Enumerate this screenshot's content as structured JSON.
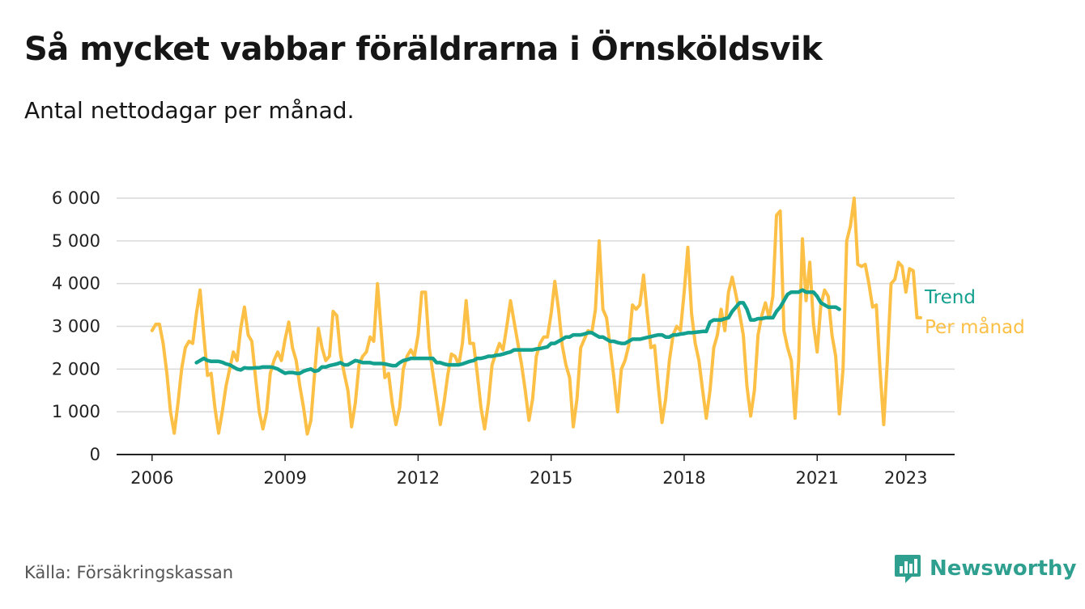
{
  "title": "Så mycket vabbar föräldrarna i Örnsköldsvik",
  "subtitle": "Antal nettodagar per månad.",
  "source": "Källa: Försäkringskassan",
  "brand": "Newsworthy",
  "colors": {
    "per_month": "#FDC046",
    "trend": "#13A08E",
    "grid": "#d9d9d9",
    "axis": "#222222",
    "brand": "#2f9f8f"
  },
  "chart_data": {
    "type": "line",
    "title": "Så mycket vabbar föräldrarna i Örnsköldsvik",
    "xlabel": "",
    "ylabel": "",
    "xlim": [
      2005.2,
      2024.1
    ],
    "ylim": [
      0,
      6000
    ],
    "grid": true,
    "y_ticks": [
      0,
      1000,
      2000,
      3000,
      4000,
      5000,
      6000
    ],
    "y_tick_labels": [
      "0",
      "1 000",
      "2 000",
      "3 000",
      "4 000",
      "5 000",
      "6 000"
    ],
    "x_ticks": [
      2006,
      2009,
      2012,
      2015,
      2018,
      2021,
      2023
    ],
    "x_tick_labels": [
      "2006",
      "2009",
      "2012",
      "2015",
      "2018",
      "2021",
      "2023"
    ],
    "series": [
      {
        "name": "Per månad",
        "color": "#FDC046",
        "x_start": "2006-01",
        "values": [
          2900,
          3050,
          3050,
          2600,
          1900,
          1000,
          500,
          1200,
          2000,
          2500,
          2650,
          2600,
          3300,
          3850,
          2800,
          1850,
          1900,
          1100,
          500,
          1000,
          1600,
          2000,
          2400,
          2200,
          2950,
          3450,
          2800,
          2650,
          1800,
          1000,
          600,
          1000,
          1900,
          2200,
          2400,
          2200,
          2700,
          3100,
          2500,
          2200,
          1600,
          1100,
          480,
          800,
          1900,
          2950,
          2500,
          2200,
          2300,
          3350,
          3250,
          2350,
          1900,
          1500,
          650,
          1200,
          2100,
          2300,
          2400,
          2750,
          2650,
          4000,
          2900,
          1800,
          1900,
          1200,
          700,
          1100,
          2000,
          2300,
          2450,
          2300,
          2800,
          3800,
          3800,
          2500,
          1900,
          1300,
          700,
          1200,
          1850,
          2350,
          2300,
          2100,
          2600,
          3600,
          2600,
          2600,
          1900,
          1100,
          600,
          1200,
          2100,
          2350,
          2600,
          2450,
          3000,
          3600,
          3100,
          2600,
          2100,
          1500,
          800,
          1300,
          2300,
          2600,
          2750,
          2750,
          3300,
          4050,
          3400,
          2550,
          2100,
          1800,
          650,
          1300,
          2500,
          2700,
          2900,
          2850,
          3400,
          5000,
          3400,
          3200,
          2500,
          1800,
          1000,
          2000,
          2200,
          2550,
          3500,
          3400,
          3500,
          4200,
          3300,
          2500,
          2550,
          1600,
          750,
          1300,
          2200,
          2800,
          3000,
          2900,
          3800,
          4850,
          3300,
          2600,
          2200,
          1500,
          850,
          1500,
          2500,
          2800,
          3400,
          2900,
          3800,
          4150,
          3750,
          3300,
          2800,
          1600,
          900,
          1500,
          2800,
          3250,
          3550,
          3200,
          3700,
          5600,
          5700,
          2900,
          2500,
          2200,
          850,
          2200,
          5050,
          3600,
          4500,
          3050,
          2400,
          3500,
          3850,
          3700,
          2800,
          2300,
          950,
          2000,
          5000,
          5350,
          6000,
          4450,
          4400,
          4450,
          4000,
          3450,
          3500,
          2000,
          700,
          2200,
          4000,
          4100,
          4500,
          4400,
          3800,
          4350,
          4300,
          3200,
          3200
        ]
      },
      {
        "name": "Trend",
        "color": "#13A08E",
        "x_start": "2007-01",
        "values": [
          2150,
          2200,
          2250,
          2200,
          2180,
          2180,
          2180,
          2160,
          2120,
          2100,
          2050,
          2000,
          1980,
          2030,
          2020,
          2020,
          2030,
          2030,
          2050,
          2050,
          2050,
          2030,
          2000,
          1950,
          1900,
          1920,
          1920,
          1900,
          1900,
          1950,
          1980,
          2000,
          1950,
          1970,
          2050,
          2050,
          2080,
          2100,
          2120,
          2150,
          2100,
          2100,
          2150,
          2200,
          2180,
          2150,
          2150,
          2150,
          2130,
          2130,
          2130,
          2120,
          2100,
          2080,
          2080,
          2150,
          2200,
          2220,
          2250,
          2250,
          2250,
          2250,
          2250,
          2250,
          2250,
          2150,
          2150,
          2120,
          2100,
          2100,
          2100,
          2100,
          2120,
          2150,
          2180,
          2200,
          2250,
          2250,
          2270,
          2300,
          2300,
          2320,
          2330,
          2350,
          2380,
          2400,
          2450,
          2450,
          2450,
          2450,
          2450,
          2450,
          2470,
          2480,
          2500,
          2520,
          2600,
          2600,
          2650,
          2700,
          2750,
          2750,
          2800,
          2800,
          2800,
          2820,
          2850,
          2850,
          2800,
          2750,
          2750,
          2700,
          2650,
          2650,
          2620,
          2600,
          2600,
          2650,
          2700,
          2700,
          2700,
          2720,
          2740,
          2760,
          2780,
          2800,
          2800,
          2750,
          2750,
          2800,
          2800,
          2820,
          2830,
          2850,
          2850,
          2860,
          2870,
          2880,
          2880,
          3100,
          3150,
          3150,
          3150,
          3180,
          3200,
          3350,
          3450,
          3550,
          3550,
          3400,
          3150,
          3150,
          3180,
          3180,
          3200,
          3200,
          3200,
          3350,
          3450,
          3600,
          3750,
          3800,
          3800,
          3800,
          3850,
          3800,
          3800,
          3800,
          3700,
          3550,
          3500,
          3450,
          3450,
          3450,
          3400
        ]
      }
    ]
  }
}
